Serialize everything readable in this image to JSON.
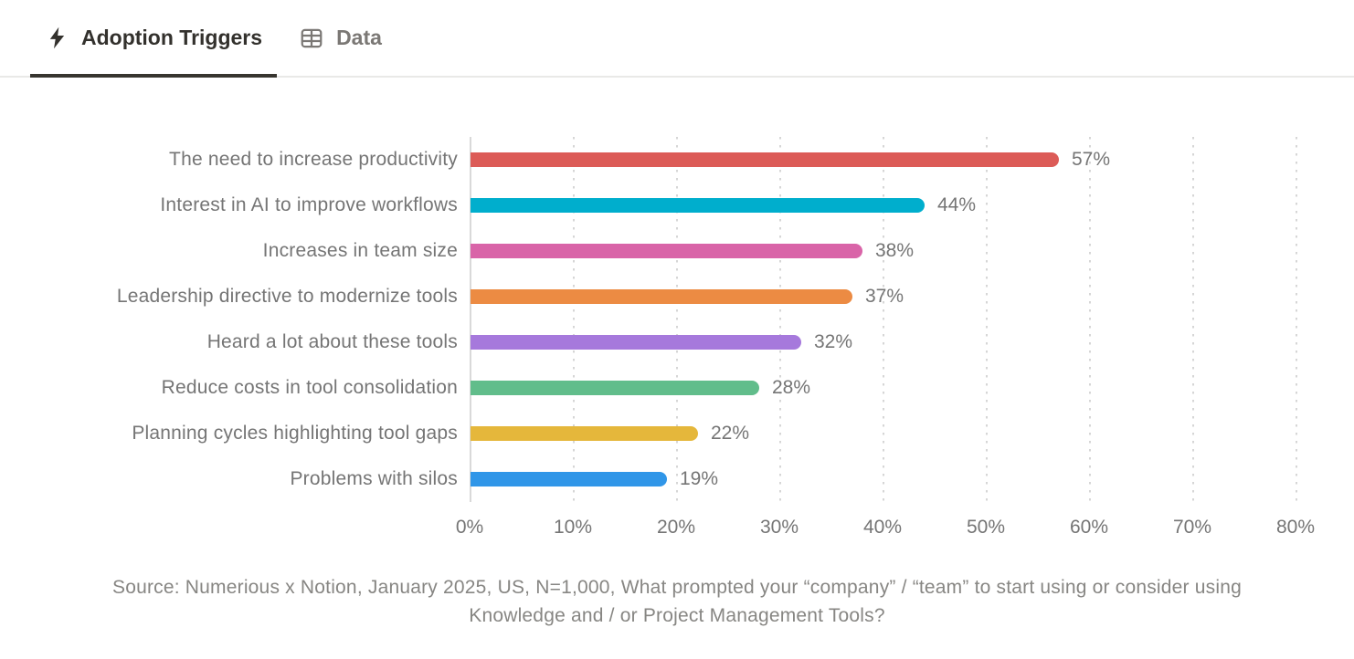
{
  "tabs": [
    {
      "label": "Adoption Triggers",
      "icon": "lightning-bolt-icon",
      "active": true
    },
    {
      "label": "Data",
      "icon": "table-icon",
      "active": false
    }
  ],
  "chart_data": {
    "type": "bar",
    "orientation": "horizontal",
    "title": "Adoption Triggers",
    "categories": [
      "The need to increase productivity",
      "Interest in AI to improve workflows",
      "Increases in team size",
      "Leadership directive to modernize tools",
      "Heard a lot about these tools",
      "Reduce costs in tool consolidation",
      "Planning cycles highlighting tool gaps",
      "Problems with silos"
    ],
    "values": [
      57,
      44,
      38,
      37,
      32,
      28,
      22,
      19
    ],
    "value_labels": [
      "57%",
      "44%",
      "38%",
      "37%",
      "32%",
      "28%",
      "22%",
      "19%"
    ],
    "bar_colors": [
      "#dc5b57",
      "#00aecd",
      "#d964a8",
      "#ec8b43",
      "#a679dc",
      "#61bd8b",
      "#e5b73b",
      "#3096e8"
    ],
    "xlim": [
      0,
      80
    ],
    "x_ticks": [
      "0%",
      "10%",
      "20%",
      "30%",
      "40%",
      "50%",
      "60%",
      "70%",
      "80%"
    ],
    "grid": "dotted-vertical-gridlines",
    "legend": "none",
    "source": "Source: Numerious x Notion, January 2025, US, N=1,000, What prompted your “company” / “team” to start using or consider using Knowledge and / or Project Management Tools?"
  },
  "colors": {
    "active_tab_text": "#33312d",
    "inactive_tab_text": "#7b7875",
    "active_tab_underline": "#37352f",
    "tabbar_border": "#e9e9e7",
    "axis_text": "#757575",
    "label_text": "#757575",
    "source_text": "#878683",
    "gridline": "#d6d6d6",
    "background": "#ffffff"
  }
}
